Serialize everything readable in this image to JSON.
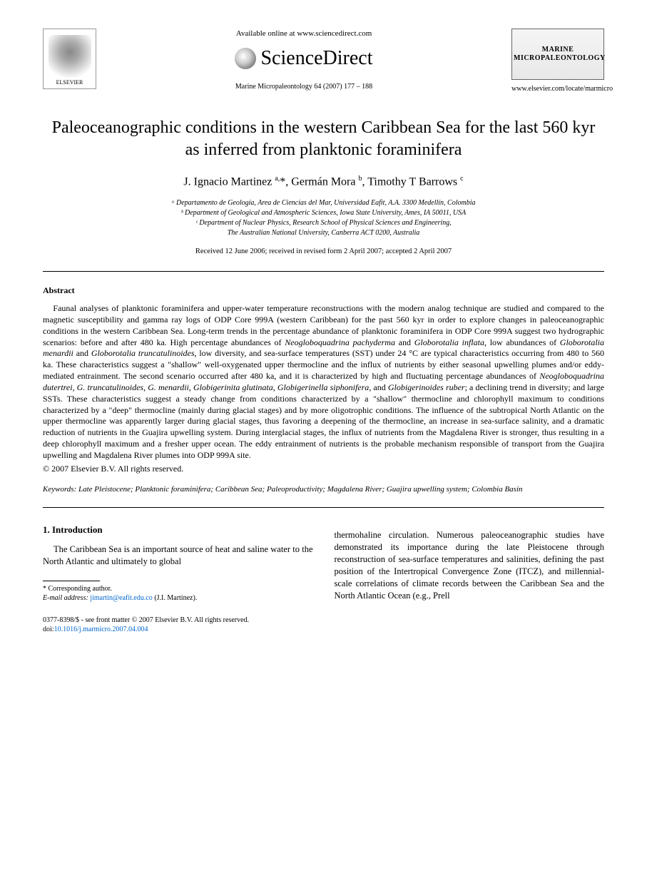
{
  "header": {
    "available_online": "Available online at www.sciencedirect.com",
    "brand": "ScienceDirect",
    "journal_ref": "Marine Micropaleontology 64 (2007) 177 – 188",
    "publisher": "ELSEVIER",
    "journal_name_line1": "MARINE",
    "journal_name_line2": "MICROPALEONTOLOGY",
    "journal_url": "www.elsevier.com/locate/marmicro"
  },
  "title": "Paleoceanographic conditions in the western Caribbean Sea for the last 560 kyr as inferred from planktonic foraminifera",
  "authors_html": "J. Ignacio Martinez <sup>a,</sup>*, Germán Mora <sup>b</sup>, Timothy T Barrows <sup>c</sup>",
  "affiliations": [
    "ᵃ Departamento de Geología, Area de Ciencias del Mar, Universidad Eafit, A.A. 3300 Medellín, Colombia",
    "ᵇ Department of Geological and Atmospheric Sciences, Iowa State University, Ames, IA 50011, USA",
    "ᶜ Department of Nuclear Physics, Research School of Physical Sciences and Engineering,",
    "The Australian National University, Canberra ACT 0200, Australia"
  ],
  "dates": "Received 12 June 2006; received in revised form 2 April 2007; accepted 2 April 2007",
  "abstract": {
    "label": "Abstract",
    "text": "Faunal analyses of planktonic foraminifera and upper-water temperature reconstructions with the modern analog technique are studied and compared to the magnetic susceptibility and gamma ray logs of ODP Core 999A (western Caribbean) for the past 560 kyr in order to explore changes in paleoceanographic conditions in the western Caribbean Sea. Long-term trends in the percentage abundance of planktonic foraminifera in ODP Core 999A suggest two hydrographic scenarios: before and after 480 ka. High percentage abundances of Neogloboquadrina pachyderma and Globorotalia inflata, low abundances of Globorotalia menardii and Globorotalia truncatulinoides, low diversity, and sea-surface temperatures (SST) under 24 °C are typical characteristics occurring from 480 to 560 ka. These characteristics suggest a \"shallow\" well-oxygenated upper thermocline and the influx of nutrients by either seasonal upwelling plumes and/or eddy-mediated entrainment. The second scenario occurred after 480 ka, and it is characterized by high and fluctuating percentage abundances of Neogloboquadrina dutertrei, G. truncatulinoides, G. menardii, Globigerinita glutinata, Globigerinella siphonifera, and Globigerinoides ruber; a declining trend in diversity; and large SSTs. These characteristics suggest a steady change from conditions characterized by a \"shallow\" thermocline and chlorophyll maximum to conditions characterized by a \"deep\" thermocline (mainly during glacial stages) and by more oligotrophic conditions. The influence of the subtropical North Atlantic on the upper thermocline was apparently larger during glacial stages, thus favoring a deepening of the thermocline, an increase in sea-surface salinity, and a dramatic reduction of nutrients in the Guajira upwelling system. During interglacial stages, the influx of nutrients from the Magdalena River is stronger, thus resulting in a deep chlorophyll maximum and a fresher upper ocean. The eddy entrainment of nutrients is the probable mechanism responsible of transport from the Guajira upwelling and Magdalena River plumes into ODP 999A site.",
    "copyright": "© 2007 Elsevier B.V. All rights reserved."
  },
  "keywords": "Keywords: Late Pleistocene; Planktonic foraminifera; Caribbean Sea; Paleoproductivity; Magdalena River; Guajira upwelling system; Colombia Basin",
  "section1": {
    "heading": "1. Introduction",
    "col_left": "The Caribbean Sea is an important source of heat and saline water to the North Atlantic and ultimately to global",
    "col_right": "thermohaline circulation. Numerous paleoceanographic studies have demonstrated its importance during the late Pleistocene through reconstruction of sea-surface temperatures and salinities, defining the past position of the Intertropical Convergence Zone (ITCZ), and millennial-scale correlations of climate records between the Caribbean Sea and the North Atlantic Ocean (e.g., Prell"
  },
  "footnote": {
    "corresponding": "* Corresponding author.",
    "email_label": "E-mail address:",
    "email": "jimartin@eafit.edu.co",
    "email_who": "(J.I. Martinez)."
  },
  "footer": {
    "issn": "0377-8398/$ - see front matter © 2007 Elsevier B.V. All rights reserved.",
    "doi_label": "doi:",
    "doi": "10.1016/j.marmicro.2007.04.004"
  },
  "colors": {
    "text": "#000000",
    "link": "#0066cc",
    "background": "#ffffff"
  },
  "typography": {
    "title_fontsize": 24,
    "body_fontsize": 12.5,
    "abstract_fontsize": 12,
    "footnote_fontsize": 10,
    "font_family": "Times New Roman"
  }
}
